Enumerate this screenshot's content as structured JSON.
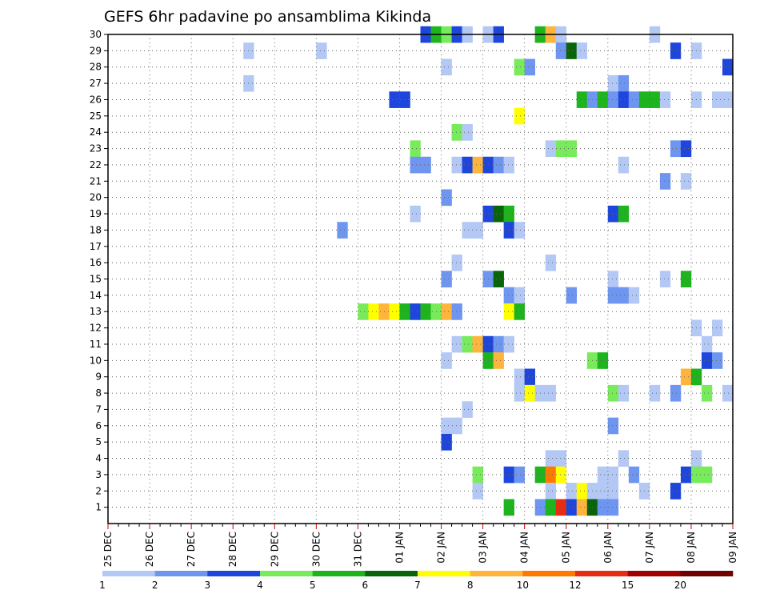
{
  "chart_data": {
    "type": "heatmap",
    "title": "GEFS 6hr padavine po ansamblima Kikinda",
    "x_dates": [
      "25 DEC",
      "26 DEC",
      "27 DEC",
      "28 DEC",
      "29 DEC",
      "30 DEC",
      "31 DEC",
      "01 JAN",
      "02 JAN",
      "03 JAN",
      "04 JAN",
      "05 JAN",
      "06 JAN",
      "07 JAN",
      "08 JAN",
      "09 JAN"
    ],
    "x_steps": 60,
    "steps_per_day": 4,
    "y_members": [
      1,
      2,
      3,
      4,
      5,
      6,
      7,
      8,
      9,
      10,
      11,
      12,
      13,
      14,
      15,
      16,
      17,
      18,
      19,
      20,
      21,
      22,
      23,
      24,
      25,
      26,
      27,
      28,
      29,
      30
    ],
    "y_range": [
      0,
      30
    ],
    "grid": true,
    "legend": {
      "position": "bottom",
      "labels": [
        "1",
        "2",
        "3",
        "4",
        "5",
        "6",
        "7",
        "8",
        "10",
        "12",
        "15",
        "20"
      ],
      "colors": [
        "#b4c8f5",
        "#6e96f0",
        "#1e46dc",
        "#78eb5a",
        "#1eb41e",
        "#0a640a",
        "#ffff00",
        "#ffb43c",
        "#ff7800",
        "#e62d14",
        "#a00000",
        "#6e0000"
      ]
    },
    "cells": [
      {
        "t": 30,
        "m": 30,
        "v": 3
      },
      {
        "t": 31,
        "m": 30,
        "v": 5
      },
      {
        "t": 32,
        "m": 30,
        "v": 4
      },
      {
        "t": 33,
        "m": 30,
        "v": 3
      },
      {
        "t": 34,
        "m": 30,
        "v": 1
      },
      {
        "t": 36,
        "m": 30,
        "v": 1
      },
      {
        "t": 37,
        "m": 30,
        "v": 3
      },
      {
        "t": 41,
        "m": 30,
        "v": 5
      },
      {
        "t": 42,
        "m": 30,
        "v": 8
      },
      {
        "t": 43,
        "m": 30,
        "v": 1
      },
      {
        "t": 52,
        "m": 30,
        "v": 1
      },
      {
        "t": 13,
        "m": 29,
        "v": 1
      },
      {
        "t": 20,
        "m": 29,
        "v": 1
      },
      {
        "t": 43,
        "m": 29,
        "v": 2
      },
      {
        "t": 44,
        "m": 29,
        "v": 6
      },
      {
        "t": 45,
        "m": 29,
        "v": 1
      },
      {
        "t": 54,
        "m": 29,
        "v": 3
      },
      {
        "t": 56,
        "m": 29,
        "v": 1
      },
      {
        "t": 32,
        "m": 28,
        "v": 1
      },
      {
        "t": 39,
        "m": 28,
        "v": 4
      },
      {
        "t": 40,
        "m": 28,
        "v": 2
      },
      {
        "t": 59,
        "m": 28,
        "v": 3
      },
      {
        "t": 13,
        "m": 27,
        "v": 1
      },
      {
        "t": 48,
        "m": 27,
        "v": 1
      },
      {
        "t": 49,
        "m": 27,
        "v": 2
      },
      {
        "t": 27,
        "m": 26,
        "v": 3
      },
      {
        "t": 28,
        "m": 26,
        "v": 3
      },
      {
        "t": 45,
        "m": 26,
        "v": 5
      },
      {
        "t": 46,
        "m": 26,
        "v": 2
      },
      {
        "t": 47,
        "m": 26,
        "v": 5
      },
      {
        "t": 48,
        "m": 26,
        "v": 2
      },
      {
        "t": 49,
        "m": 26,
        "v": 3
      },
      {
        "t": 50,
        "m": 26,
        "v": 2
      },
      {
        "t": 51,
        "m": 26,
        "v": 5
      },
      {
        "t": 52,
        "m": 26,
        "v": 5
      },
      {
        "t": 53,
        "m": 26,
        "v": 1
      },
      {
        "t": 56,
        "m": 26,
        "v": 1
      },
      {
        "t": 58,
        "m": 26,
        "v": 1
      },
      {
        "t": 59,
        "m": 26,
        "v": 1
      },
      {
        "t": 39,
        "m": 25,
        "v": 7
      },
      {
        "t": 33,
        "m": 24,
        "v": 4
      },
      {
        "t": 34,
        "m": 24,
        "v": 1
      },
      {
        "t": 29,
        "m": 23,
        "v": 4
      },
      {
        "t": 42,
        "m": 23,
        "v": 1
      },
      {
        "t": 43,
        "m": 23,
        "v": 4
      },
      {
        "t": 44,
        "m": 23,
        "v": 4
      },
      {
        "t": 54,
        "m": 23,
        "v": 2
      },
      {
        "t": 55,
        "m": 23,
        "v": 3
      },
      {
        "t": 29,
        "m": 22,
        "v": 2
      },
      {
        "t": 30,
        "m": 22,
        "v": 2
      },
      {
        "t": 33,
        "m": 22,
        "v": 1
      },
      {
        "t": 34,
        "m": 22,
        "v": 3
      },
      {
        "t": 35,
        "m": 22,
        "v": 9
      },
      {
        "t": 36,
        "m": 22,
        "v": 3
      },
      {
        "t": 37,
        "m": 22,
        "v": 2
      },
      {
        "t": 38,
        "m": 22,
        "v": 1
      },
      {
        "t": 49,
        "m": 22,
        "v": 1
      },
      {
        "t": 53,
        "m": 21,
        "v": 2
      },
      {
        "t": 55,
        "m": 21,
        "v": 1
      },
      {
        "t": 32,
        "m": 20,
        "v": 2
      },
      {
        "t": 29,
        "m": 19,
        "v": 1
      },
      {
        "t": 36,
        "m": 19,
        "v": 3
      },
      {
        "t": 37,
        "m": 19,
        "v": 6
      },
      {
        "t": 38,
        "m": 19,
        "v": 5
      },
      {
        "t": 48,
        "m": 19,
        "v": 3
      },
      {
        "t": 49,
        "m": 19,
        "v": 5
      },
      {
        "t": 22,
        "m": 18,
        "v": 2
      },
      {
        "t": 34,
        "m": 18,
        "v": 1
      },
      {
        "t": 35,
        "m": 18,
        "v": 1
      },
      {
        "t": 38,
        "m": 18,
        "v": 3
      },
      {
        "t": 39,
        "m": 18,
        "v": 1
      },
      {
        "t": 33,
        "m": 16,
        "v": 1
      },
      {
        "t": 42,
        "m": 16,
        "v": 1
      },
      {
        "t": 32,
        "m": 15,
        "v": 2
      },
      {
        "t": 36,
        "m": 15,
        "v": 2
      },
      {
        "t": 37,
        "m": 15,
        "v": 6
      },
      {
        "t": 48,
        "m": 15,
        "v": 1
      },
      {
        "t": 53,
        "m": 15,
        "v": 1
      },
      {
        "t": 55,
        "m": 15,
        "v": 5
      },
      {
        "t": 38,
        "m": 14,
        "v": 2
      },
      {
        "t": 39,
        "m": 14,
        "v": 1
      },
      {
        "t": 44,
        "m": 14,
        "v": 2
      },
      {
        "t": 48,
        "m": 14,
        "v": 2
      },
      {
        "t": 49,
        "m": 14,
        "v": 2
      },
      {
        "t": 50,
        "m": 14,
        "v": 1
      },
      {
        "t": 24,
        "m": 13,
        "v": 4
      },
      {
        "t": 25,
        "m": 13,
        "v": 7
      },
      {
        "t": 26,
        "m": 13,
        "v": 8
      },
      {
        "t": 27,
        "m": 13,
        "v": 7
      },
      {
        "t": 28,
        "m": 13,
        "v": 5
      },
      {
        "t": 29,
        "m": 13,
        "v": 3
      },
      {
        "t": 30,
        "m": 13,
        "v": 5
      },
      {
        "t": 31,
        "m": 13,
        "v": 4
      },
      {
        "t": 32,
        "m": 13,
        "v": 8
      },
      {
        "t": 33,
        "m": 13,
        "v": 2
      },
      {
        "t": 38,
        "m": 13,
        "v": 7
      },
      {
        "t": 39,
        "m": 13,
        "v": 5
      },
      {
        "t": 56,
        "m": 12,
        "v": 1
      },
      {
        "t": 58,
        "m": 12,
        "v": 1
      },
      {
        "t": 33,
        "m": 11,
        "v": 1
      },
      {
        "t": 34,
        "m": 11,
        "v": 4
      },
      {
        "t": 35,
        "m": 11,
        "v": 8
      },
      {
        "t": 36,
        "m": 11,
        "v": 3
      },
      {
        "t": 37,
        "m": 11,
        "v": 2
      },
      {
        "t": 38,
        "m": 11,
        "v": 1
      },
      {
        "t": 57,
        "m": 11,
        "v": 1
      },
      {
        "t": 32,
        "m": 10,
        "v": 1
      },
      {
        "t": 36,
        "m": 10,
        "v": 5
      },
      {
        "t": 37,
        "m": 10,
        "v": 8
      },
      {
        "t": 46,
        "m": 10,
        "v": 4
      },
      {
        "t": 47,
        "m": 10,
        "v": 5
      },
      {
        "t": 57,
        "m": 10,
        "v": 3
      },
      {
        "t": 58,
        "m": 10,
        "v": 2
      },
      {
        "t": 39,
        "m": 9,
        "v": 1
      },
      {
        "t": 40,
        "m": 9,
        "v": 3
      },
      {
        "t": 55,
        "m": 9,
        "v": 9
      },
      {
        "t": 56,
        "m": 9,
        "v": 5
      },
      {
        "t": 39,
        "m": 8,
        "v": 1
      },
      {
        "t": 40,
        "m": 8,
        "v": 7
      },
      {
        "t": 41,
        "m": 8,
        "v": 1
      },
      {
        "t": 42,
        "m": 8,
        "v": 1
      },
      {
        "t": 48,
        "m": 8,
        "v": 4
      },
      {
        "t": 49,
        "m": 8,
        "v": 1
      },
      {
        "t": 52,
        "m": 8,
        "v": 1
      },
      {
        "t": 54,
        "m": 8,
        "v": 2
      },
      {
        "t": 57,
        "m": 8,
        "v": 4
      },
      {
        "t": 59,
        "m": 8,
        "v": 1
      },
      {
        "t": 34,
        "m": 7,
        "v": 1
      },
      {
        "t": 32,
        "m": 6,
        "v": 1
      },
      {
        "t": 33,
        "m": 6,
        "v": 1
      },
      {
        "t": 48,
        "m": 6,
        "v": 2
      },
      {
        "t": 32,
        "m": 5,
        "v": 3
      },
      {
        "t": 42,
        "m": 4,
        "v": 1
      },
      {
        "t": 43,
        "m": 4,
        "v": 1
      },
      {
        "t": 49,
        "m": 4,
        "v": 1
      },
      {
        "t": 56,
        "m": 4,
        "v": 1
      },
      {
        "t": 35,
        "m": 3,
        "v": 4
      },
      {
        "t": 38,
        "m": 3,
        "v": 3
      },
      {
        "t": 39,
        "m": 3,
        "v": 2
      },
      {
        "t": 41,
        "m": 3,
        "v": 5
      },
      {
        "t": 42,
        "m": 3,
        "v": 10
      },
      {
        "t": 43,
        "m": 3,
        "v": 7
      },
      {
        "t": 47,
        "m": 3,
        "v": 1
      },
      {
        "t": 48,
        "m": 3,
        "v": 1
      },
      {
        "t": 50,
        "m": 3,
        "v": 2
      },
      {
        "t": 55,
        "m": 3,
        "v": 3
      },
      {
        "t": 56,
        "m": 3,
        "v": 4
      },
      {
        "t": 57,
        "m": 3,
        "v": 4
      },
      {
        "t": 35,
        "m": 2,
        "v": 1
      },
      {
        "t": 42,
        "m": 2,
        "v": 1
      },
      {
        "t": 44,
        "m": 2,
        "v": 1
      },
      {
        "t": 45,
        "m": 2,
        "v": 7
      },
      {
        "t": 46,
        "m": 2,
        "v": 1
      },
      {
        "t": 47,
        "m": 2,
        "v": 1
      },
      {
        "t": 48,
        "m": 2,
        "v": 1
      },
      {
        "t": 51,
        "m": 2,
        "v": 1
      },
      {
        "t": 54,
        "m": 2,
        "v": 3
      },
      {
        "t": 38,
        "m": 1,
        "v": 5
      },
      {
        "t": 41,
        "m": 1,
        "v": 2
      },
      {
        "t": 42,
        "m": 1,
        "v": 5
      },
      {
        "t": 43,
        "m": 1,
        "v": 12
      },
      {
        "t": 44,
        "m": 1,
        "v": 3
      },
      {
        "t": 45,
        "m": 1,
        "v": 9
      },
      {
        "t": 46,
        "m": 1,
        "v": 6
      },
      {
        "t": 47,
        "m": 1,
        "v": 2
      },
      {
        "t": 48,
        "m": 1,
        "v": 2
      }
    ]
  }
}
